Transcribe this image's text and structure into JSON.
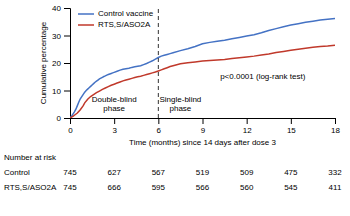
{
  "chart_data": {
    "type": "line",
    "xlabel": "Time (months) since 14 days after dose 3",
    "ylabel": "Cumulative percentage",
    "xlim": [
      0,
      18
    ],
    "ylim": [
      0,
      40
    ],
    "xticks": [
      0,
      3,
      6,
      9,
      12,
      15,
      18
    ],
    "yticks": [
      0,
      10,
      20,
      30,
      40
    ],
    "grid": false,
    "legend": "upper left",
    "series": [
      {
        "name": "Control vaccine",
        "color": "#4472C4",
        "x": [
          0.0,
          0.05,
          0.1,
          0.15,
          0.2,
          0.3,
          0.4,
          0.5,
          0.6,
          0.7,
          0.8,
          0.9,
          1.0,
          1.1,
          1.2,
          1.3,
          1.4,
          1.5,
          1.6,
          1.7,
          1.8,
          1.9,
          2.0,
          2.1,
          2.2,
          2.3,
          2.4,
          2.5,
          2.6,
          2.7,
          2.8,
          2.9,
          3.0,
          3.2,
          3.4,
          3.6,
          3.8,
          4.0,
          4.2,
          4.4,
          4.6,
          4.8,
          5.0,
          5.2,
          5.4,
          5.6,
          5.8,
          6.0,
          6.2,
          6.4,
          6.6,
          6.8,
          7.0,
          7.5,
          8.0,
          8.5,
          9.0,
          9.5,
          10.0,
          10.5,
          11.0,
          11.5,
          12.0,
          12.5,
          13.0,
          13.5,
          14.0,
          14.5,
          15.0,
          15.5,
          16.0,
          16.5,
          17.0,
          17.5,
          18.0
        ],
        "values": [
          0.0,
          0.3,
          0.6,
          1.0,
          1.4,
          2.2,
          3.2,
          4.5,
          5.8,
          7.0,
          7.8,
          8.6,
          9.4,
          10.0,
          10.5,
          11.0,
          11.5,
          12.0,
          12.5,
          13.0,
          13.4,
          13.8,
          14.2,
          14.5,
          14.8,
          15.1,
          15.3,
          15.6,
          15.8,
          16.0,
          16.2,
          16.4,
          16.6,
          17.0,
          17.4,
          17.7,
          17.9,
          18.1,
          18.4,
          18.6,
          18.8,
          19.0,
          19.4,
          19.8,
          20.3,
          20.8,
          21.4,
          22.0,
          22.5,
          22.8,
          23.1,
          23.4,
          23.7,
          24.5,
          25.2,
          26.0,
          27.0,
          27.5,
          27.9,
          28.3,
          28.8,
          29.3,
          29.8,
          30.3,
          31.0,
          31.8,
          32.5,
          33.2,
          33.8,
          34.3,
          34.8,
          35.2,
          35.6,
          35.9,
          36.2
        ]
      },
      {
        "name": "RTS,S/ASO2A",
        "color": "#C0392B",
        "x": [
          0.0,
          0.1,
          0.2,
          0.3,
          0.5,
          0.7,
          0.9,
          1.0,
          1.2,
          1.4,
          1.6,
          1.8,
          2.0,
          2.2,
          2.4,
          2.6,
          2.8,
          3.0,
          3.2,
          3.4,
          3.6,
          3.8,
          4.0,
          4.2,
          4.4,
          4.6,
          4.8,
          5.0,
          5.2,
          5.4,
          5.6,
          5.8,
          6.0,
          6.2,
          6.4,
          6.6,
          6.8,
          7.0,
          7.5,
          8.0,
          8.5,
          9.0,
          9.5,
          10.0,
          10.5,
          11.0,
          11.5,
          12.0,
          12.5,
          13.0,
          13.5,
          14.0,
          14.5,
          15.0,
          15.5,
          16.0,
          16.5,
          17.0,
          17.5,
          18.0
        ],
        "values": [
          0.0,
          0.3,
          0.6,
          1.0,
          1.8,
          3.0,
          4.5,
          5.5,
          6.8,
          7.8,
          8.5,
          9.2,
          9.8,
          10.4,
          10.9,
          11.4,
          11.9,
          12.3,
          12.7,
          13.1,
          13.5,
          13.8,
          14.1,
          14.4,
          14.7,
          15.0,
          15.2,
          15.5,
          15.8,
          16.1,
          16.4,
          16.7,
          17.1,
          17.5,
          17.9,
          18.3,
          18.7,
          19.0,
          19.7,
          20.1,
          20.4,
          20.7,
          20.9,
          21.1,
          21.3,
          21.6,
          21.9,
          22.2,
          22.5,
          22.9,
          23.3,
          23.8,
          24.2,
          24.6,
          25.0,
          25.4,
          25.7,
          26.0,
          26.2,
          26.5
        ]
      }
    ],
    "vline": 6,
    "annotations": [
      {
        "text": "Double-blind\nphase",
        "x": 3.0,
        "y": 2.0
      },
      {
        "text": "Single-blind\nphase",
        "x": 7.5,
        "y": 2.0
      },
      {
        "text": "p<0.0001 (log-rank test)",
        "x": 10.2,
        "y": 15.0
      }
    ],
    "risk_table": {
      "title": "Number at risk",
      "x": [
        0,
        3,
        6,
        9,
        12,
        15,
        18
      ],
      "rows": [
        {
          "label": "Control",
          "values": [
            745,
            627,
            567,
            519,
            509,
            475,
            332
          ]
        },
        {
          "label": "RTS,S/ASO2A",
          "values": [
            745,
            666,
            595,
            566,
            560,
            545,
            411
          ]
        }
      ]
    }
  }
}
